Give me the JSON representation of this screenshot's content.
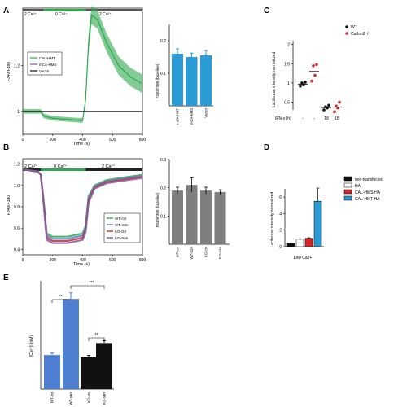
{
  "panels": {
    "A": {
      "letter": "A",
      "trace": {
        "ylabel": "F340/F380",
        "xlabel": "Time (s)",
        "y_ticks": [
          "1",
          "1.2"
        ],
        "x_ticks": [
          "0",
          "200",
          "400",
          "600",
          "800"
        ],
        "bar_labels": [
          "2 Ca²⁺",
          "0 Ca²⁺",
          "2 Ca²⁺"
        ],
        "legend": [
          "CAL-HMT",
          "mCA-HMS",
          "Vector"
        ]
      },
      "bars": {
        "ylabel": "F340/F380 (baseline)",
        "y_ticks": [
          "0.1",
          "0.2"
        ],
        "categories": [
          "mCA-HMT",
          "mCA-HMS",
          "Vector"
        ]
      }
    },
    "B": {
      "letter": "B",
      "trace": {
        "ylabel": "F340/F380",
        "xlabel": "Time (s)",
        "y_ticks": [
          "1.2",
          "1.0",
          "0.8",
          "0.6",
          "0.4"
        ],
        "x_ticks": [
          "0",
          "200",
          "400",
          "600",
          "800"
        ],
        "bar_labels": [
          "2 Ca²⁺",
          "0 Ca²⁺",
          "2 Ca²⁺"
        ],
        "legend": [
          "WT-ctrl",
          "WT-stim",
          "KO-ctrl",
          "KO-stim"
        ]
      },
      "bars": {
        "ylabel": "F340/F380 (baseline)",
        "y_ticks": [
          "0.1",
          "0.2",
          "0.3"
        ],
        "categories": [
          "WT-ctrl",
          "WT-stim",
          "KO-ctrl",
          "KO-stim"
        ]
      }
    },
    "C": {
      "letter": "C",
      "ylabel": "Luciferase intensity normalized",
      "y_ticks": [
        "2",
        "1.5",
        "1",
        "0.5"
      ],
      "x_row_label": "IFN-γ (h)",
      "x_values": [
        "-",
        "-",
        "18",
        "18"
      ],
      "legend": [
        "WT",
        "Cathm8⁻/⁻"
      ]
    },
    "D": {
      "letter": "D",
      "ylabel": "Luciferase intensity normalized",
      "y_ticks": [
        "6",
        "4",
        "2",
        "0"
      ],
      "xlabel": "Low Ca2+",
      "legend": [
        "non-transfected",
        "HA",
        "CAL-HMS-HA",
        "CAL-HMT-HA"
      ]
    },
    "E": {
      "letter": "E",
      "ylabel": "[Ca²⁺]i (nM)",
      "categories": [
        "WT-ctrl",
        "WT-stim",
        "KO-ctrl",
        "KO-stim"
      ],
      "significance": [
        "***",
        "***",
        "**"
      ]
    }
  },
  "colors": {
    "green": "#2fa84f",
    "blue": "#2b9bd6",
    "gray": "#7f7f7f",
    "red": "#d62728",
    "violet": "#7b5ea7",
    "lightblue": "#4f7fd0",
    "black": "#111111"
  },
  "chart_data": [
    {
      "type": "line",
      "panel": "A",
      "x": [
        0,
        120,
        140,
        200,
        400,
        420,
        440,
        460,
        500,
        560,
        640,
        720,
        800
      ],
      "series": [
        {
          "name": "CAL-HMT",
          "values": [
            1.0,
            1.0,
            0.98,
            0.97,
            0.96,
            1.05,
            1.3,
            1.42,
            1.4,
            1.3,
            1.2,
            1.15,
            1.12
          ]
        },
        {
          "name": "mCA-HMS",
          "values": [
            1.0,
            1.0,
            1.0,
            1.0,
            1.0,
            1.0,
            1.0,
            1.0,
            1.0,
            1.0,
            1.0,
            1.0,
            1.0
          ]
        },
        {
          "name": "Vector",
          "values": [
            1.0,
            1.0,
            1.0,
            1.0,
            1.0,
            1.0,
            1.0,
            1.0,
            1.0,
            1.0,
            1.0,
            1.0,
            1.0
          ]
        }
      ],
      "xlim": [
        0,
        800
      ],
      "ylim": [
        0.9,
        1.45
      ]
    },
    {
      "type": "bar",
      "panel": "A",
      "categories": [
        "mCA-HMT",
        "mCA-HMS",
        "Vector"
      ],
      "values": [
        0.16,
        0.15,
        0.155
      ],
      "errors": [
        0.015,
        0.012,
        0.015
      ],
      "ylim": [
        0,
        0.25
      ]
    },
    {
      "type": "line",
      "panel": "B",
      "x": [
        0,
        100,
        120,
        140,
        160,
        200,
        300,
        400,
        420,
        440,
        480,
        560,
        700,
        800
      ],
      "series": [
        {
          "name": "WT-ctrl",
          "values": [
            1.15,
            1.13,
            1.1,
            0.85,
            0.55,
            0.52,
            0.52,
            0.55,
            0.62,
            0.9,
            1.0,
            1.05,
            1.08,
            1.1
          ]
        },
        {
          "name": "WT-stim",
          "values": [
            1.15,
            1.13,
            1.1,
            0.84,
            0.53,
            0.5,
            0.5,
            0.53,
            0.6,
            0.88,
            0.99,
            1.04,
            1.07,
            1.09
          ]
        },
        {
          "name": "KO-ctrl",
          "values": [
            1.15,
            1.13,
            1.1,
            0.83,
            0.51,
            0.48,
            0.48,
            0.51,
            0.58,
            0.86,
            0.98,
            1.03,
            1.06,
            1.08
          ]
        },
        {
          "name": "KO-stim",
          "values": [
            1.15,
            1.13,
            1.1,
            0.82,
            0.49,
            0.46,
            0.46,
            0.49,
            0.56,
            0.84,
            0.97,
            1.02,
            1.05,
            1.07
          ]
        }
      ],
      "xlim": [
        0,
        800
      ],
      "ylim": [
        0.35,
        1.25
      ]
    },
    {
      "type": "bar",
      "panel": "B",
      "categories": [
        "WT-ctrl",
        "WT-stim",
        "KO-ctrl",
        "KO-stim"
      ],
      "values": [
        0.19,
        0.21,
        0.19,
        0.185
      ],
      "errors": [
        0.012,
        0.025,
        0.012,
        0.008
      ],
      "ylim": [
        0,
        0.3
      ]
    },
    {
      "type": "scatter",
      "panel": "C",
      "groups": [
        "-",
        "-",
        "18",
        "18"
      ],
      "series": [
        {
          "name": "WT",
          "group_index": 0,
          "values": [
            0.92,
            0.95,
            1.0,
            1.02
          ]
        },
        {
          "name": "Cathm8⁻/⁻",
          "group_index": 1,
          "values": [
            1.05,
            1.2,
            1.45,
            1.48
          ]
        },
        {
          "name": "WT",
          "group_index": 2,
          "values": [
            0.3,
            0.35,
            0.38,
            0.42
          ]
        },
        {
          "name": "Cathm8⁻/⁻",
          "group_index": 3,
          "values": [
            0.25,
            0.35,
            0.4,
            0.5
          ]
        }
      ],
      "means": [
        0.97,
        1.3,
        0.36,
        0.37
      ],
      "ylim": [
        0.3,
        2.1
      ]
    },
    {
      "type": "bar",
      "panel": "D",
      "categories": [
        "non-transfected",
        "HA",
        "CAL-HMS-HA",
        "CAL-HMT-HA"
      ],
      "values": [
        0.4,
        0.9,
        1.0,
        5.5
      ],
      "errors": [
        0,
        0.05,
        0.08,
        1.6
      ],
      "ylim": [
        0,
        7
      ]
    },
    {
      "type": "bar",
      "panel": "E",
      "categories": [
        "WT-ctrl",
        "WT-stim",
        "KO-ctrl",
        "KO-stim"
      ],
      "values": [
        85,
        225,
        80,
        115
      ],
      "errors": [
        5,
        15,
        4,
        6
      ],
      "ylim": [
        0,
        270
      ]
    }
  ]
}
